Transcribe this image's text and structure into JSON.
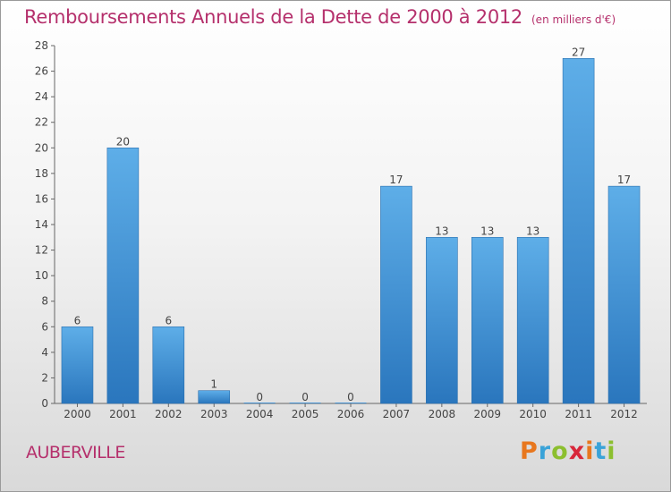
{
  "header": {
    "title": "Remboursements Annuels de la Dette de 2000 à 2012",
    "unit": "(en milliers d'€)"
  },
  "footer": {
    "commune": "AUBERVILLE",
    "logo": "Proxiti",
    "logo_colors": [
      "#e8771e",
      "#3aa3d8",
      "#8cbf2f",
      "#d8273a",
      "#e8771e",
      "#3aa3d8",
      "#8cbf2f"
    ]
  },
  "colors": {
    "bar_light": "#5eaee8",
    "bar_dark": "#2a76bd",
    "title": "#b5306c"
  },
  "chart_data": {
    "type": "bar",
    "title": "Remboursements Annuels de la Dette de 2000 à 2012",
    "xlabel": "",
    "ylabel": "",
    "categories": [
      "2000",
      "2001",
      "2002",
      "2003",
      "2004",
      "2005",
      "2006",
      "2007",
      "2008",
      "2009",
      "2010",
      "2011",
      "2012"
    ],
    "values": [
      6,
      20,
      6,
      1,
      0,
      0,
      0,
      17,
      13,
      13,
      13,
      27,
      17
    ],
    "ylim": [
      0,
      28
    ],
    "yticks": [
      0,
      2,
      4,
      6,
      8,
      10,
      12,
      14,
      16,
      18,
      20,
      22,
      24,
      26,
      28
    ],
    "grid": false,
    "legend": "none"
  }
}
